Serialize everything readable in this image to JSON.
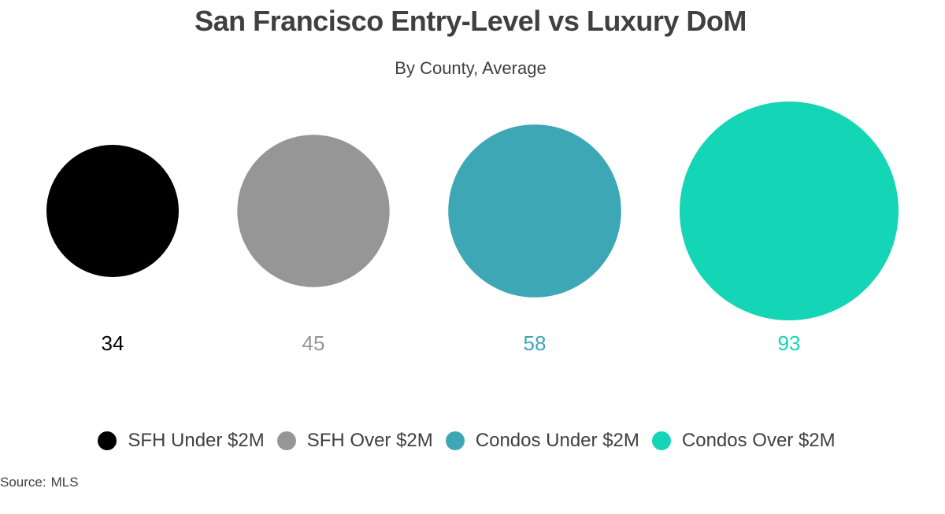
{
  "chart_data": {
    "type": "bubble",
    "title": "San Francisco Entry-Level vs Luxury DoM",
    "subtitle": "By County, Average",
    "series": [
      {
        "name": "SFH Under $2M",
        "value": 34,
        "color": "#000000"
      },
      {
        "name": "SFH Over $2M",
        "value": 45,
        "color": "#969696"
      },
      {
        "name": "Condos Under $2M",
        "value": 58,
        "color": "#3ea7b5"
      },
      {
        "name": "Condos Over $2M",
        "value": 93,
        "color": "#14d5b5"
      }
    ],
    "legend_position": "bottom",
    "source_label": "Source:",
    "source": "MLS"
  }
}
